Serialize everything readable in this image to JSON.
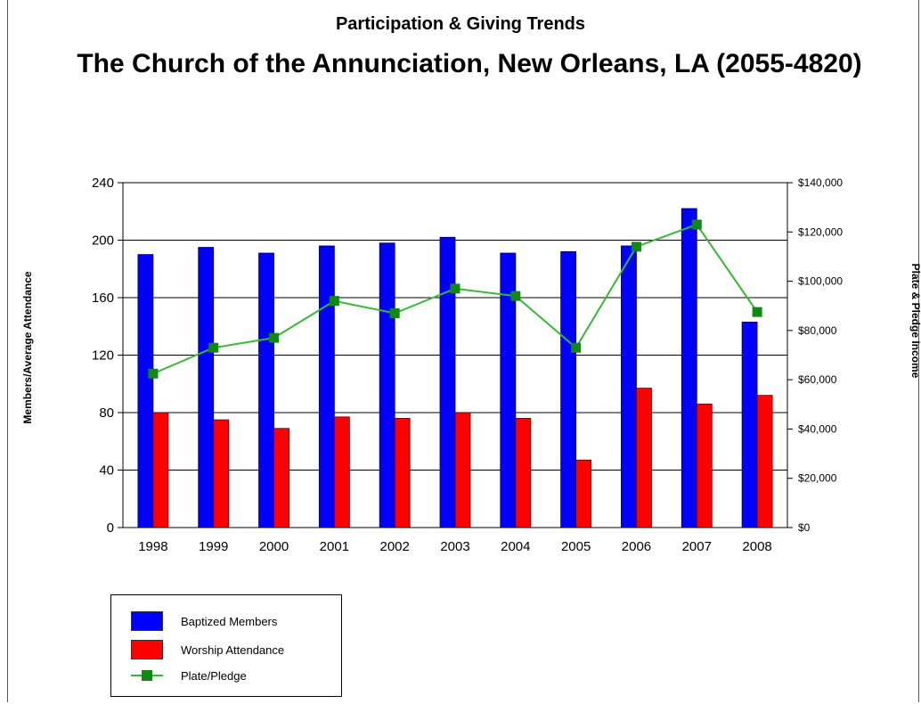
{
  "chart_data": {
    "type": "bar",
    "title": "Participation & Giving Trends",
    "subtitle": "The Church of the Annunciation, New Orleans, LA (2055-4820)",
    "ylabel": "Members/Average Attendance",
    "y2label": "Plate & Pledge Income",
    "categories": [
      "1998",
      "1999",
      "2000",
      "2001",
      "2002",
      "2003",
      "2004",
      "2005",
      "2006",
      "2007",
      "2008"
    ],
    "ylim": [
      0,
      240
    ],
    "yticks": [
      "0",
      "40",
      "80",
      "120",
      "160",
      "200",
      "240"
    ],
    "y2lim": [
      0,
      140000
    ],
    "y2ticks": [
      "$0",
      "$20,000",
      "$40,000",
      "$60,000",
      "$80,000",
      "$100,000",
      "$120,000",
      "$140,000"
    ],
    "series": [
      {
        "name": "Baptized Members",
        "type": "bar",
        "axis": "left",
        "color": "#0000ff",
        "values": [
          190,
          195,
          191,
          196,
          198,
          202,
          191,
          192,
          196,
          222,
          143
        ]
      },
      {
        "name": "Worship Attendance",
        "type": "bar",
        "axis": "left",
        "color": "#ff0000",
        "values": [
          80,
          75,
          69,
          77,
          76,
          80,
          76,
          47,
          97,
          86,
          92
        ]
      },
      {
        "name": "Plate/Pledge",
        "type": "line",
        "axis": "right",
        "color": "#33bb33",
        "marker_color": "#118811",
        "values": [
          62500,
          73000,
          77000,
          92000,
          87000,
          97000,
          94000,
          73000,
          114000,
          123000,
          87500
        ]
      }
    ],
    "grid": "horizontal",
    "legend_position": "bottom-left"
  }
}
